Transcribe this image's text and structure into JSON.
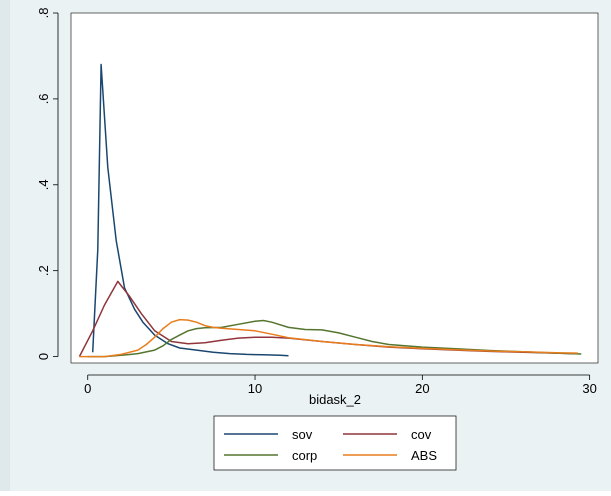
{
  "chart_data": {
    "type": "line",
    "xlabel": "bidask_2",
    "ylabel": "",
    "xlim": [
      -1,
      30.5
    ],
    "ylim": [
      -0.015,
      0.8
    ],
    "x_ticks": [
      0,
      10,
      20,
      30
    ],
    "x_tick_labels": [
      "0",
      "10",
      "20",
      "30"
    ],
    "y_ticks": [
      0,
      0.2,
      0.4,
      0.6,
      0.8
    ],
    "y_tick_labels": [
      "0",
      ".2",
      ".4",
      ".6",
      ".8"
    ],
    "grid": false,
    "legend": "bottom",
    "series": [
      {
        "name": "sov",
        "color": "#1a476f",
        "x": [
          0.3,
          0.6,
          0.8,
          1.2,
          1.7,
          2.2,
          2.8,
          3.3,
          4.0,
          4.8,
          5.5,
          6.5,
          7.5,
          8.5,
          9.5,
          10.5,
          11.5,
          12.0
        ],
        "y": [
          0.01,
          0.25,
          0.68,
          0.44,
          0.27,
          0.16,
          0.11,
          0.08,
          0.05,
          0.03,
          0.02,
          0.015,
          0.01,
          0.007,
          0.005,
          0.004,
          0.003,
          0.002
        ]
      },
      {
        "name": "cov",
        "color": "#90353b",
        "x": [
          -0.5,
          0.3,
          1.0,
          1.8,
          2.5,
          3.2,
          4.0,
          5.0,
          6.0,
          7.0,
          8.0,
          9.0,
          10.0,
          11.0,
          12.0,
          14.0,
          16.0,
          18.0,
          20.0,
          22.0,
          24.0,
          26.0,
          28.0,
          29.0
        ],
        "y": [
          0.0,
          0.06,
          0.12,
          0.175,
          0.14,
          0.1,
          0.06,
          0.035,
          0.03,
          0.032,
          0.038,
          0.043,
          0.045,
          0.045,
          0.043,
          0.035,
          0.028,
          0.022,
          0.018,
          0.015,
          0.012,
          0.01,
          0.008,
          0.007
        ]
      },
      {
        "name": "corp",
        "color": "#55752f",
        "x": [
          0.0,
          1.0,
          2.0,
          3.0,
          4.0,
          4.5,
          5.0,
          5.5,
          6.0,
          6.5,
          7.0,
          8.0,
          9.0,
          10.0,
          10.5,
          11.0,
          12.0,
          13.0,
          14.0,
          15.0,
          16.0,
          17.0,
          18.0,
          20.0,
          22.0,
          24.0,
          26.0,
          28.0,
          29.5
        ],
        "y": [
          0.0,
          0.0,
          0.003,
          0.007,
          0.015,
          0.025,
          0.04,
          0.05,
          0.06,
          0.065,
          0.067,
          0.068,
          0.075,
          0.082,
          0.084,
          0.08,
          0.068,
          0.063,
          0.062,
          0.055,
          0.045,
          0.035,
          0.028,
          0.022,
          0.018,
          0.014,
          0.011,
          0.008,
          0.006
        ]
      },
      {
        "name": "ABS",
        "color": "#e87d1e",
        "x": [
          -0.5,
          1.0,
          2.0,
          3.0,
          3.5,
          4.0,
          4.5,
          5.0,
          5.5,
          6.0,
          6.5,
          7.0,
          7.5,
          8.0,
          9.0,
          10.0,
          11.0,
          12.0,
          14.0,
          16.0,
          18.0,
          20.0,
          22.0,
          24.0,
          26.0,
          28.0,
          29.3
        ],
        "y": [
          0.0,
          0.0,
          0.005,
          0.015,
          0.028,
          0.045,
          0.065,
          0.08,
          0.086,
          0.085,
          0.08,
          0.072,
          0.068,
          0.066,
          0.063,
          0.06,
          0.052,
          0.044,
          0.035,
          0.028,
          0.023,
          0.019,
          0.016,
          0.013,
          0.011,
          0.009,
          0.008
        ]
      }
    ]
  }
}
